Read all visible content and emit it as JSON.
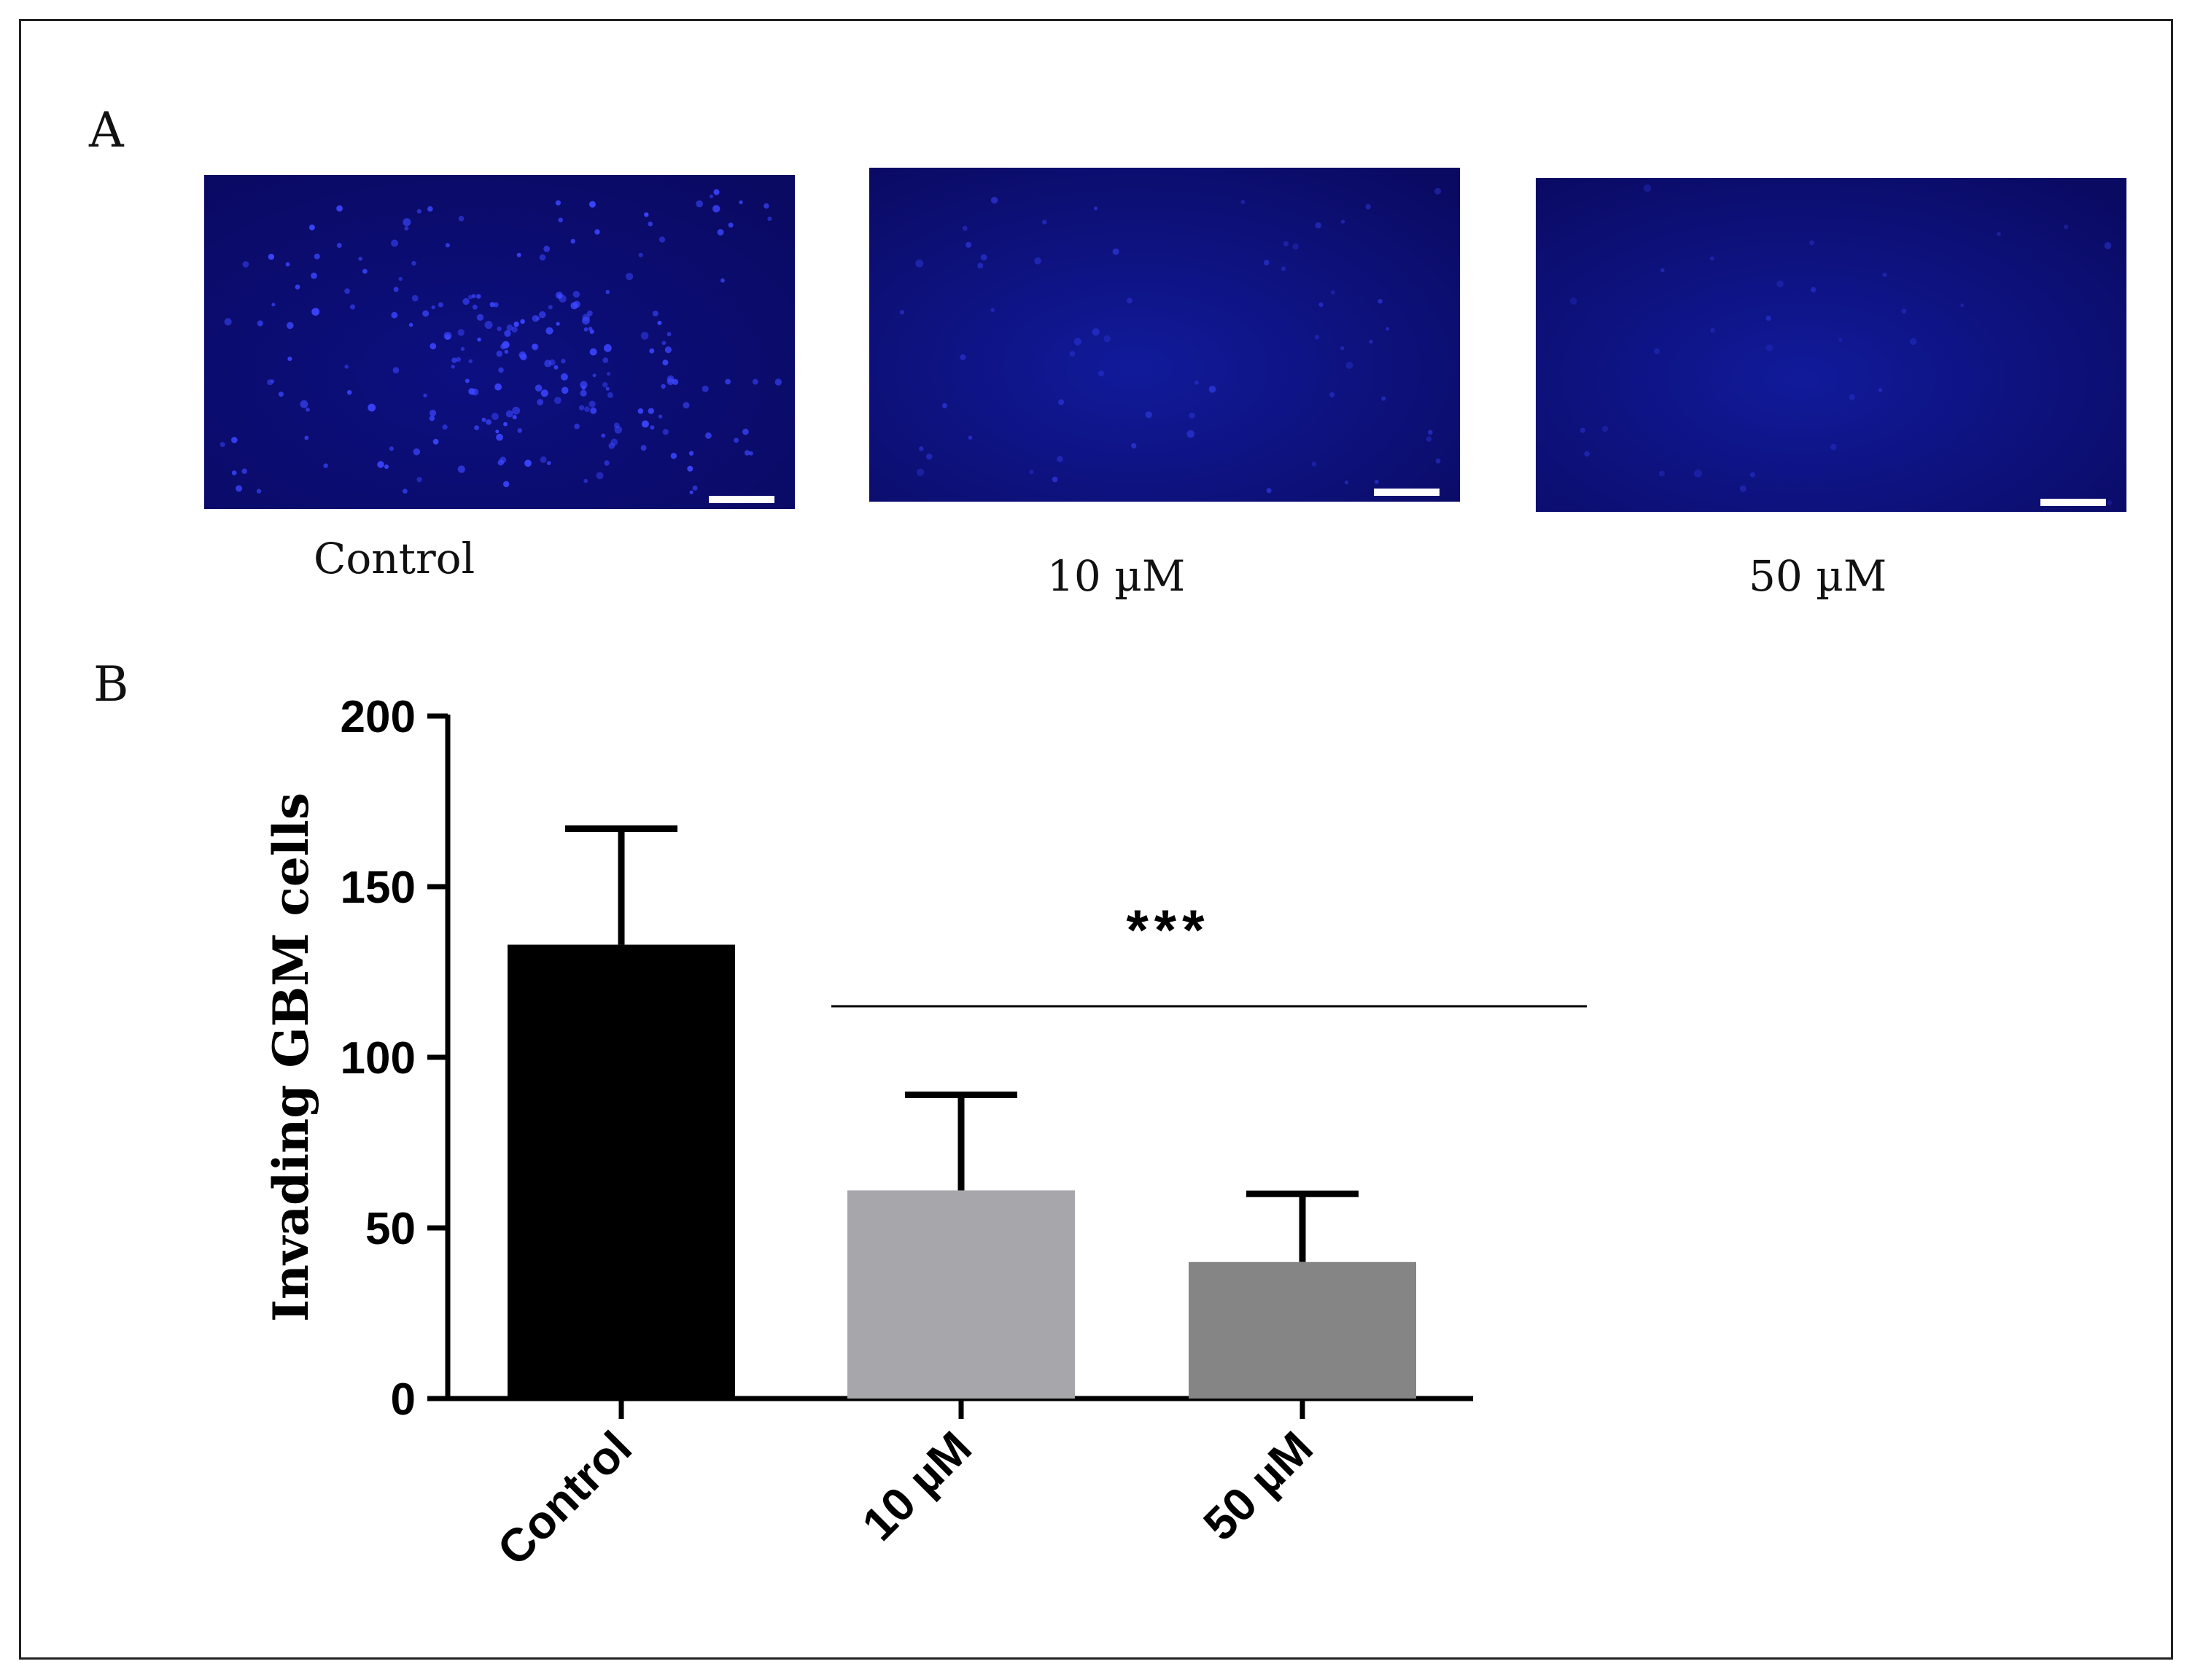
{
  "panels": {
    "a_label": "A",
    "b_label": "B"
  },
  "micrographs": [
    {
      "caption": "Control",
      "cell_density": "high"
    },
    {
      "caption": "10 µM",
      "cell_density": "low"
    },
    {
      "caption": "50 µM",
      "cell_density": "very low"
    }
  ],
  "colors": {
    "micrograph_background": "#0a0a63",
    "nuclei": "#3b46ff",
    "control_bar": "#000000",
    "bar_10uM": "#a7a7ab",
    "bar_50uM": "#858585"
  },
  "chart_data": {
    "type": "bar",
    "categories": [
      "Control",
      "10 µM",
      "50 µM"
    ],
    "values": [
      133,
      61,
      40
    ],
    "error_upper": [
      167,
      89,
      60
    ],
    "ylabel": "Invading GBM cells",
    "xlabel": "",
    "ylim": [
      0,
      200
    ],
    "yticks": [
      "0",
      "50",
      "100",
      "150",
      "200"
    ],
    "significance": "***",
    "significance_span": [
      "10 µM",
      "50 µM"
    ],
    "grid": false
  }
}
